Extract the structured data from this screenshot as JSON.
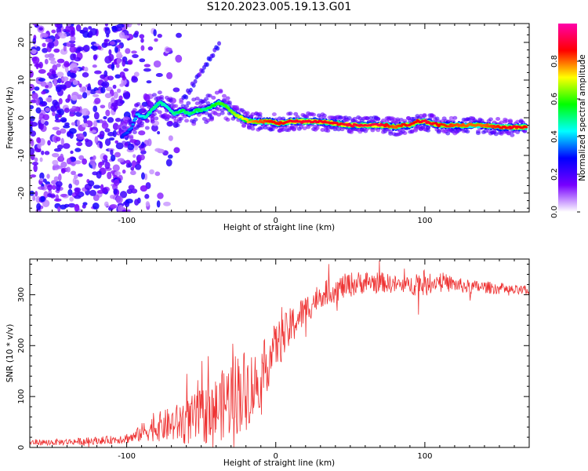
{
  "figure": {
    "title": "S120.2023.005.19.13.G01"
  },
  "chart_data": [
    {
      "type": "heatmap",
      "xlabel": "Height of straight line (km)",
      "ylabel": "Frequency (Hz)",
      "xlim": [
        -165,
        170
      ],
      "ylim": [
        -25,
        25
      ],
      "xticks": [
        -100,
        0,
        100
      ],
      "yticks": [
        -20,
        -10,
        0,
        10,
        20
      ],
      "colorbar": {
        "label": "Normalized spectral amplitude",
        "ticks": [
          "0.0",
          "0.2",
          "0.4",
          "0.6",
          "0.8"
        ],
        "range": [
          0,
          1
        ],
        "colormap": [
          "#ffffff",
          "#7700ff",
          "#0000ff",
          "#00ffff",
          "#00ff00",
          "#ffff00",
          "#ff0000",
          "#ff00aa"
        ]
      },
      "ridge": {
        "x": [
          -103,
          -97,
          -93,
          -88,
          -83,
          -78,
          -73,
          -68,
          -63,
          -58,
          -53,
          -48,
          -43,
          -38,
          -33,
          -28,
          -23,
          -18,
          -13,
          -8,
          -3,
          2,
          10,
          20,
          30,
          40,
          50,
          60,
          70,
          75,
          80,
          85,
          90,
          95,
          100,
          105,
          110,
          120,
          130,
          140,
          150,
          160,
          168
        ],
        "y": [
          -5,
          -3,
          1,
          0,
          2,
          4,
          3,
          1,
          2,
          1,
          2,
          2,
          3,
          4,
          3,
          1,
          0,
          -1,
          -1,
          -1,
          -1,
          -1.5,
          -1,
          -1,
          -1,
          -1.5,
          -2,
          -2,
          -2,
          -2,
          -2.5,
          -2,
          -2,
          -1,
          -1,
          -1.5,
          -2,
          -2,
          -2,
          -2,
          -2.5,
          -2.5,
          -2.5
        ],
        "amplitude": [
          0.3,
          0.35,
          0.4,
          0.45,
          0.5,
          0.5,
          0.45,
          0.5,
          0.55,
          0.5,
          0.55,
          0.5,
          0.55,
          0.6,
          0.6,
          0.65,
          0.7,
          0.75,
          0.8,
          0.82,
          0.85,
          0.85,
          0.88,
          0.9,
          0.88,
          0.88,
          0.9,
          0.9,
          0.92,
          0.85,
          0.8,
          0.85,
          0.88,
          0.85,
          0.9,
          0.88,
          0.85,
          0.82,
          0.8,
          0.8,
          0.85,
          0.88,
          0.85
        ]
      }
    },
    {
      "type": "line",
      "xlabel": "Height of straight line (km)",
      "ylabel": "SNR (10 * v/v)",
      "xlim": [
        -165,
        170
      ],
      "ylim": [
        0,
        370
      ],
      "xticks": [
        -100,
        0,
        100
      ],
      "yticks": [
        0,
        100,
        200,
        300
      ],
      "color": "#ee3333",
      "series": [
        {
          "x": [
            -165,
            -150,
            -130,
            -110,
            -95,
            -90,
            -80,
            -70,
            -60,
            -50,
            -40,
            -35,
            -30,
            -25,
            -20,
            -15,
            -10,
            -5,
            0,
            5,
            10,
            15,
            20,
            25,
            30,
            40,
            50,
            60,
            70,
            80,
            90,
            95,
            100,
            110,
            120,
            130,
            140,
            150,
            160,
            170
          ],
          "y": [
            10,
            10,
            12,
            15,
            20,
            30,
            40,
            45,
            50,
            60,
            75,
            85,
            100,
            110,
            115,
            120,
            140,
            170,
            200,
            215,
            235,
            255,
            270,
            285,
            300,
            310,
            320,
            325,
            325,
            320,
            318,
            325,
            315,
            330,
            320,
            315,
            315,
            312,
            308,
            308
          ],
          "noise_amplitude": [
            6,
            6,
            7,
            8,
            12,
            18,
            28,
            35,
            45,
            55,
            65,
            70,
            80,
            85,
            80,
            70,
            60,
            55,
            45,
            45,
            40,
            35,
            30,
            28,
            25,
            25,
            25,
            22,
            20,
            18,
            16,
            30,
            20,
            16,
            15,
            14,
            12,
            12,
            10,
            10
          ]
        }
      ]
    }
  ]
}
